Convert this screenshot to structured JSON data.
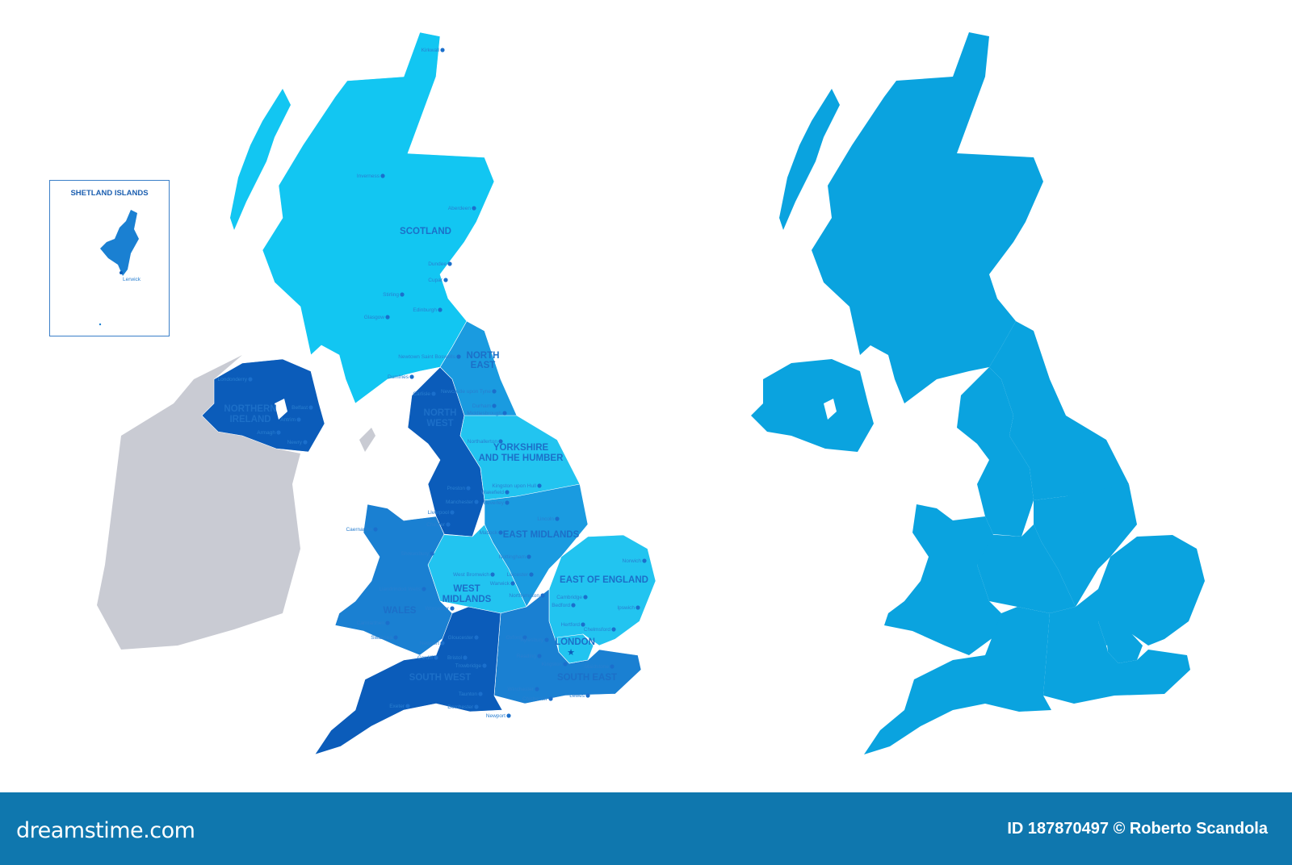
{
  "inset": {
    "title": "SHETLAND ISLANDS",
    "city": "Lerwick"
  },
  "regions": {
    "scotland": "SCOTLAND",
    "north_east": [
      "NORTH",
      "EAST"
    ],
    "north_west": [
      "NORTH",
      "WEST"
    ],
    "yorkshire": [
      "YORKSHIRE",
      "AND THE HUMBER"
    ],
    "east_midlands": "EAST MIDLANDS",
    "west_midlands": [
      "WEST",
      "MIDLANDS"
    ],
    "east_of_england": "EAST OF ENGLAND",
    "london": "LONDON",
    "wales": "WALES",
    "south_west": "SOUTH WEST",
    "south_east": "SOUTH EAST",
    "northern_ireland": [
      "NORTHERN",
      "IRELAND"
    ]
  },
  "cities": [
    "Kirkwall",
    "Inverness",
    "Aberdeen",
    "Dundee",
    "Cupar",
    "Stirling",
    "Edinburgh",
    "Glasgow",
    "Newtown Saint Boswells",
    "Dumfries",
    "Newcastle upon Tyne",
    "Durham",
    "Middlesbrough",
    "Carlisle",
    "Northallerton",
    "Kingston upon Hull",
    "Preston",
    "Wakefield",
    "Beverley",
    "Manchester",
    "Liverpool",
    "Chester",
    "Lincoln",
    "Caernarfon",
    "Matlock",
    "Nottingham",
    "Shrewsbury",
    "Leicester",
    "West Bromwich",
    "Warwick",
    "Worcester",
    "Northampton",
    "Norwich",
    "Cambridge",
    "Bedford",
    "Ipswich",
    "Llandrindod Wells",
    "Carmarthen",
    "Swansea",
    "Newport",
    "Cardiff",
    "Gloucester",
    "Oxford",
    "Aylesbury",
    "Hertford",
    "Chelmsford",
    "Reading",
    "Bristol",
    "Trowbridge",
    "Taunton",
    "Kingston",
    "Maidstone",
    "Winchester",
    "Chichester",
    "Lewes",
    "Exeter",
    "Dorchester",
    "Newport",
    "Londonderry",
    "Belfast",
    "Antrim",
    "Armagh",
    "Newry"
  ],
  "colors": {
    "light_cyan": "#12c6f2",
    "medium_blue": "#1a9be0",
    "mid_blue": "#1a80d2",
    "dark_blue": "#0b5cba",
    "ireland_grey": "#c9cbd3",
    "right_map": "#0aa3df",
    "footer_bg": "#0f77ae"
  },
  "footer": {
    "brand": "dreamstime.com",
    "credit": "ID 187870497 © Roberto Scandola"
  }
}
